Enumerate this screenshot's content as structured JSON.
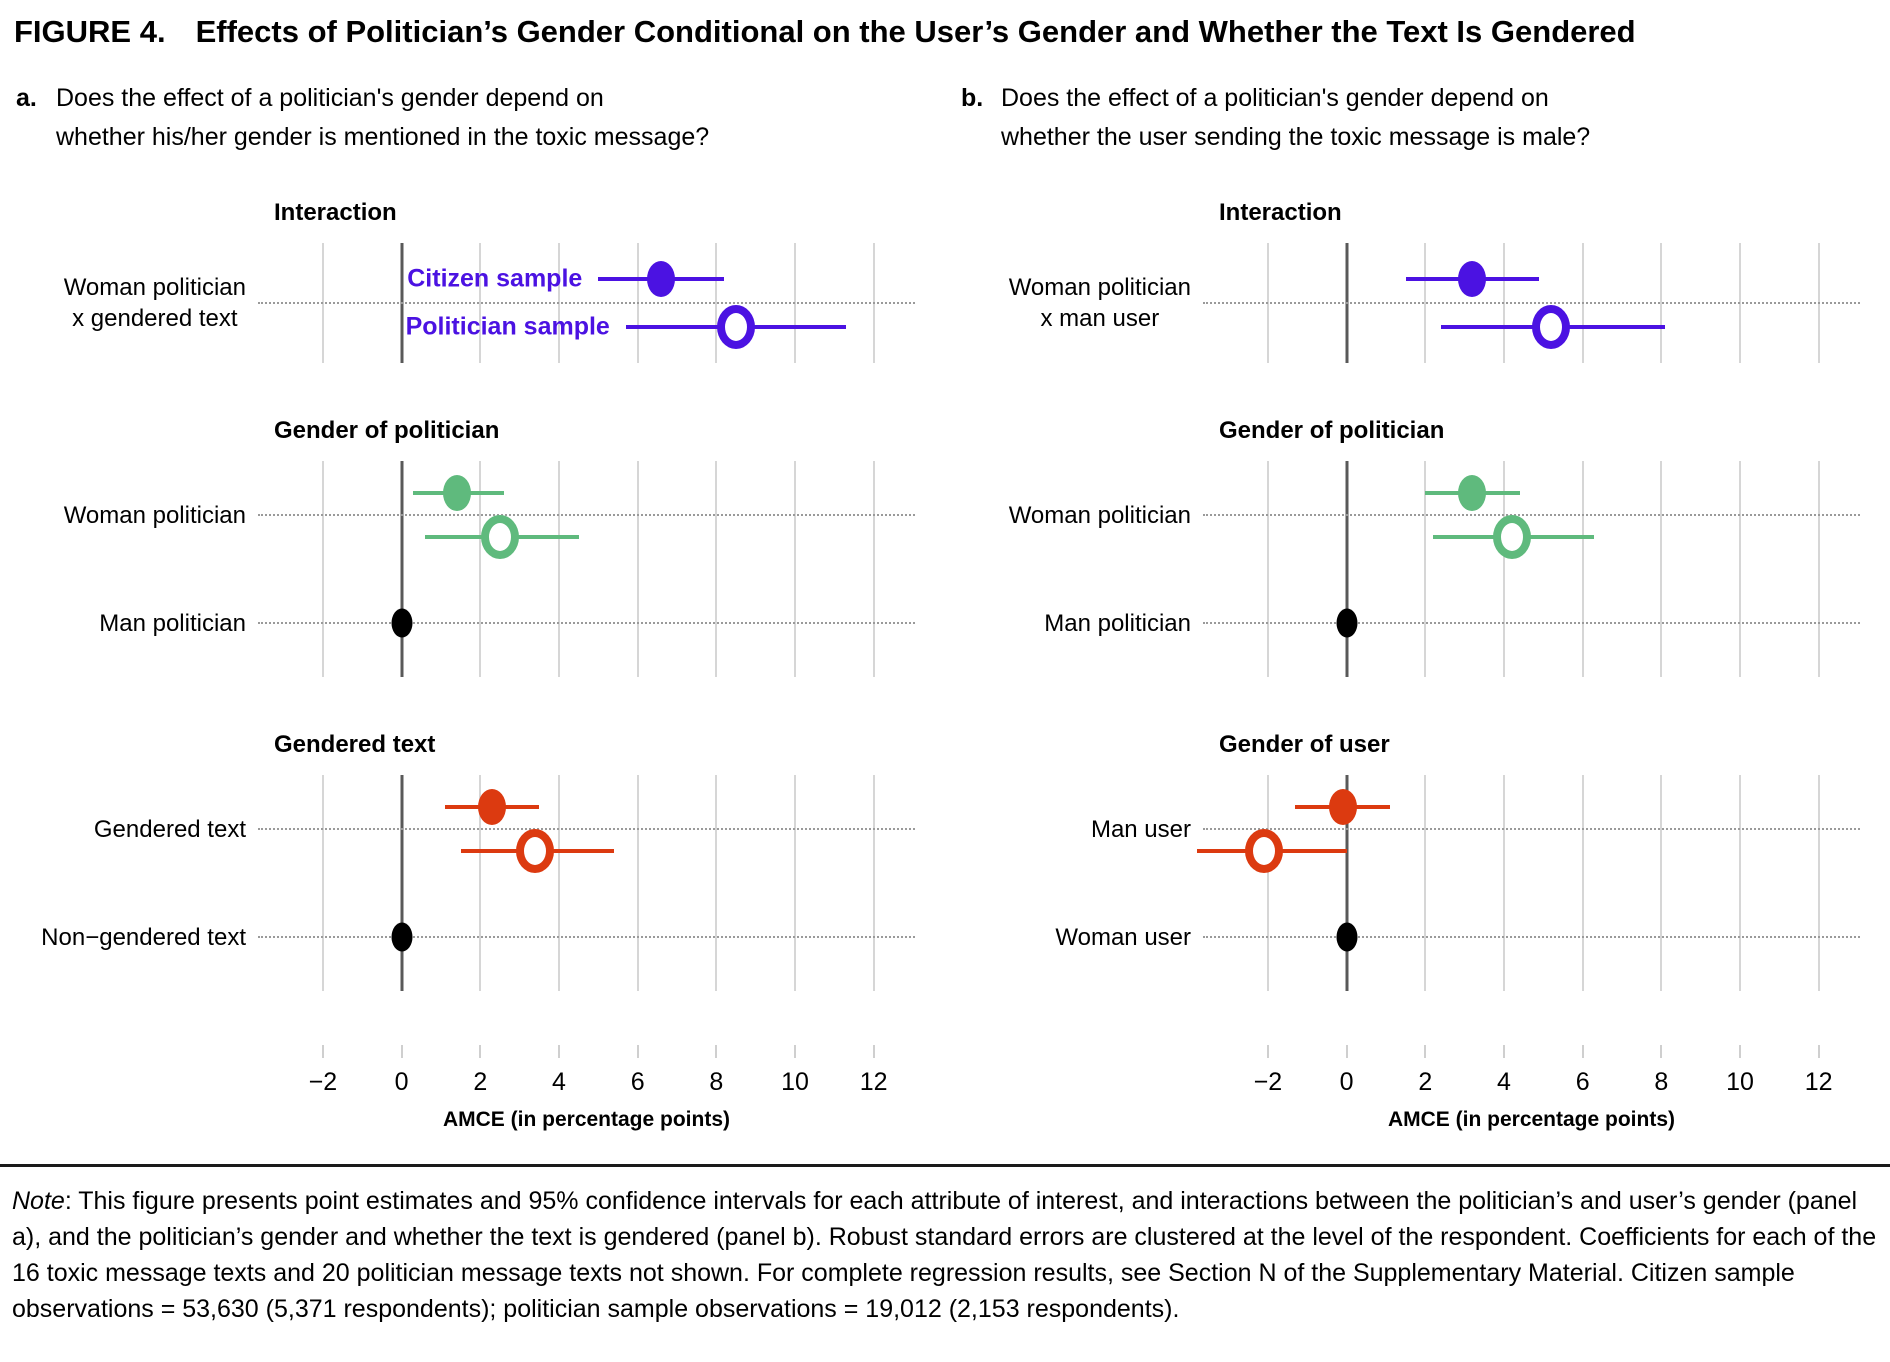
{
  "figure": {
    "label": "FIGURE 4.",
    "title": "Effects of Politician’s Gender Conditional on the User’s Gender and Whether the Text Is Gendered"
  },
  "note": {
    "label": "Note",
    "text": ": This figure presents point estimates and 95% confidence intervals for each attribute of interest, and interactions between the politician’s and user’s gender (panel a), and the politician’s gender and whether the text is gendered (panel b). Robust standard errors are clustered at the level of the respondent. Coefficients for each of the 16 toxic message texts and 20 politician message texts not shown. For complete regression results, see Section N of the Supplementary Material. Citizen sample observations = 53,630 (5,371 respondents); politician sample observations = 19,012 (2,153 respondents)."
  },
  "chart_data": {
    "type": "scatter",
    "subtype": "dot-and-whisker coefficient plot, 95% CI",
    "xlabel": "AMCE (in percentage points)",
    "x_domain": [
      -3.65,
      13.05
    ],
    "x_ticks": [
      -2,
      0,
      2,
      4,
      6,
      8,
      10,
      12
    ],
    "x_tick_labels": [
      "−2",
      "0",
      "2",
      "4",
      "6",
      "8",
      "10",
      "12"
    ],
    "grid": "vertical gridlines every 2 units, dark vertical line at 0, dotted horizontal guide per category",
    "legend": {
      "citizen": "Citizen sample",
      "politician": "Politician sample"
    },
    "legend_position": "inline labels in panel a Interaction section only",
    "colors": {
      "interaction": "#4b12e2",
      "gender_of_politician": "#5fba7d",
      "text_or_user": "#dc3a10",
      "reference": "#000000",
      "zero_line": "#595959",
      "gridline": "#d6d6d6",
      "dotted_line": "#9a9a9a"
    },
    "marker_key": "filled ellipse = Citizen sample, open ellipse = Politician sample, black ellipse = reference category at 0",
    "panels": [
      {
        "id": "a",
        "question_prefix": "a.",
        "question_line1": "Does the effect of a politician's gender depend on",
        "question_line2": "whether his/her gender is mentioned in the toxic message?",
        "sections": [
          {
            "title": "Interaction",
            "color_key": "interaction",
            "legend": true,
            "rows": [
              {
                "label_lines": [
                  "Woman politician",
                  "x gendered text"
                ],
                "series": [
                  {
                    "sample": "citizen",
                    "est": 6.6,
                    "lo": 5.0,
                    "hi": 8.2
                  },
                  {
                    "sample": "politician",
                    "est": 8.5,
                    "lo": 5.7,
                    "hi": 11.3
                  }
                ]
              }
            ]
          },
          {
            "title": "Gender of politician",
            "color_key": "gender_of_politician",
            "rows": [
              {
                "label_lines": [
                  "Woman politician"
                ],
                "series": [
                  {
                    "sample": "citizen",
                    "est": 1.4,
                    "lo": 0.3,
                    "hi": 2.6
                  },
                  {
                    "sample": "politician",
                    "est": 2.5,
                    "lo": 0.6,
                    "hi": 4.5
                  }
                ]
              },
              {
                "label_lines": [
                  "Man politician"
                ],
                "reference": {
                  "est": 0
                }
              }
            ]
          },
          {
            "title": "Gendered text",
            "color_key": "text_or_user",
            "rows": [
              {
                "label_lines": [
                  "Gendered text"
                ],
                "series": [
                  {
                    "sample": "citizen",
                    "est": 2.3,
                    "lo": 1.1,
                    "hi": 3.5
                  },
                  {
                    "sample": "politician",
                    "est": 3.4,
                    "lo": 1.5,
                    "hi": 5.4
                  }
                ]
              },
              {
                "label_lines": [
                  "Non−gendered text"
                ],
                "reference": {
                  "est": 0
                }
              }
            ]
          }
        ]
      },
      {
        "id": "b",
        "question_prefix": "b.",
        "question_line1": "Does the effect of a politician's gender depend on",
        "question_line2": "whether the user sending the toxic message is male?",
        "sections": [
          {
            "title": "Interaction",
            "color_key": "interaction",
            "rows": [
              {
                "label_lines": [
                  "Woman politician",
                  "x man user"
                ],
                "series": [
                  {
                    "sample": "citizen",
                    "est": 3.2,
                    "lo": 1.5,
                    "hi": 4.9
                  },
                  {
                    "sample": "politician",
                    "est": 5.2,
                    "lo": 2.4,
                    "hi": 8.1
                  }
                ]
              }
            ]
          },
          {
            "title": "Gender of politician",
            "color_key": "gender_of_politician",
            "rows": [
              {
                "label_lines": [
                  "Woman politician"
                ],
                "series": [
                  {
                    "sample": "citizen",
                    "est": 3.2,
                    "lo": 2.0,
                    "hi": 4.4
                  },
                  {
                    "sample": "politician",
                    "est": 4.2,
                    "lo": 2.2,
                    "hi": 6.3
                  }
                ]
              },
              {
                "label_lines": [
                  "Man politician"
                ],
                "reference": {
                  "est": 0
                }
              }
            ]
          },
          {
            "title": "Gender of user",
            "color_key": "text_or_user",
            "rows": [
              {
                "label_lines": [
                  "Man user"
                ],
                "series": [
                  {
                    "sample": "citizen",
                    "est": -0.1,
                    "lo": -1.3,
                    "hi": 1.1
                  },
                  {
                    "sample": "politician",
                    "est": -2.1,
                    "lo": -3.8,
                    "hi": 0.0
                  }
                ]
              },
              {
                "label_lines": [
                  "Woman user"
                ],
                "reference": {
                  "est": 0
                }
              }
            ]
          }
        ]
      }
    ]
  }
}
